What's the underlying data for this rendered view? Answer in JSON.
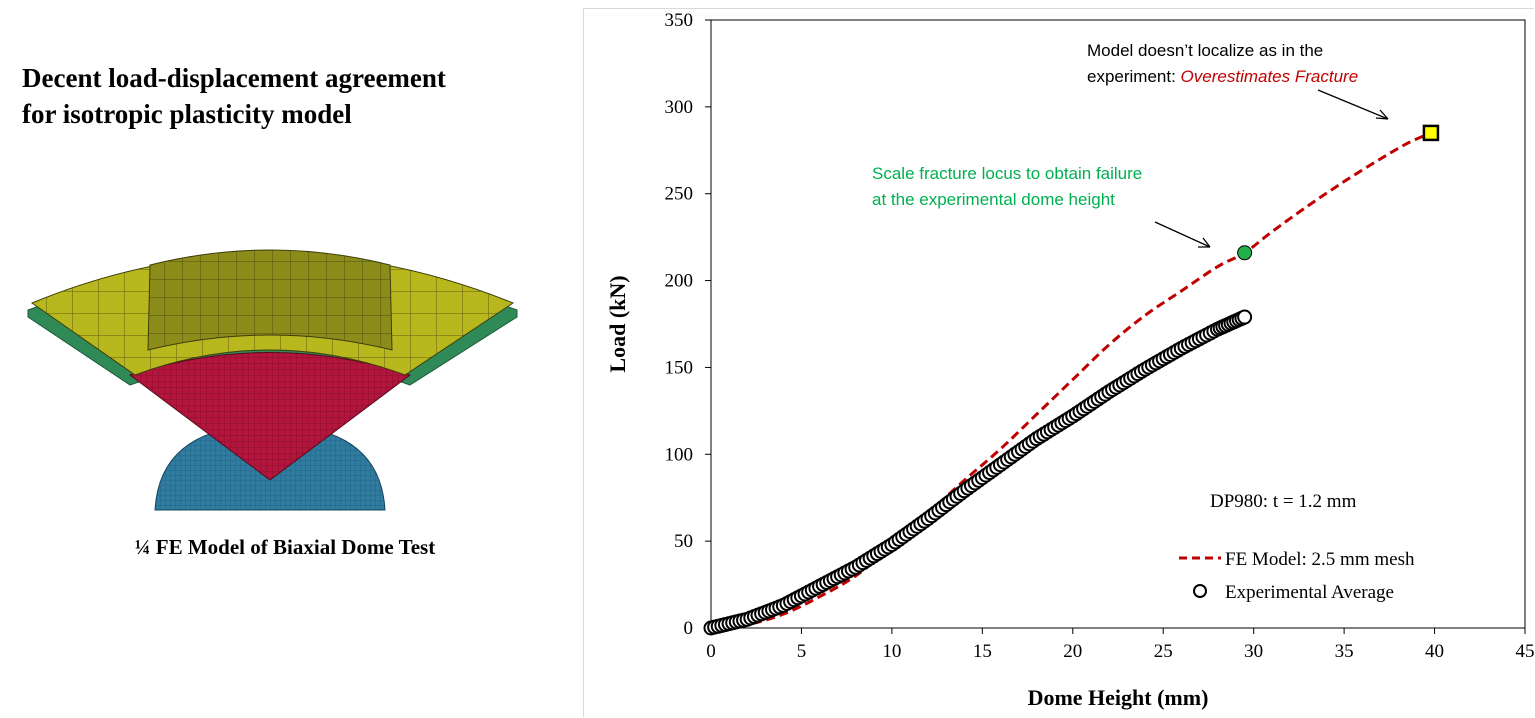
{
  "left_panel": {
    "headline_line1": "Decent load-displacement agreement",
    "headline_line2": "for isotropic plasticity model",
    "figure_caption": "¼ FE Model of Biaxial Dome Test"
  },
  "chart_data": {
    "type": "line",
    "xlabel": "Dome Height (mm)",
    "ylabel": "Load (kN)",
    "xlim": [
      0,
      45
    ],
    "ylim": [
      0,
      350
    ],
    "x_ticks": [
      0,
      5,
      10,
      15,
      20,
      25,
      30,
      35,
      40,
      45
    ],
    "y_ticks": [
      0,
      50,
      100,
      150,
      200,
      250,
      300,
      350
    ],
    "grid": false,
    "legend_position": "bottom-right",
    "series": [
      {
        "name": "FE Model: 2.5 mm mesh",
        "style": "dashed-line",
        "color": "#c00000",
        "x": [
          0,
          2,
          4,
          6,
          8,
          10,
          12,
          14,
          16,
          18,
          20,
          22,
          24,
          26,
          28,
          29.5,
          31,
          33,
          35,
          37,
          38.5,
          39.8
        ],
        "y": [
          0,
          2,
          8,
          18,
          30,
          47,
          66,
          85,
          103,
          123,
          143,
          163,
          180,
          194,
          208,
          216,
          228,
          243,
          257,
          270,
          279,
          285
        ]
      },
      {
        "name": "Experimental Average",
        "style": "open-circle-markers",
        "color": "#000000",
        "x": [
          0,
          2,
          4,
          6,
          8,
          10,
          12,
          14,
          16,
          18,
          20,
          22,
          24,
          26,
          28,
          29.5
        ],
        "y": [
          0,
          5,
          13,
          24,
          35,
          48,
          63,
          79,
          94,
          109,
          122,
          136,
          149,
          161,
          172,
          179
        ]
      }
    ],
    "markers": [
      {
        "name": "green-fracture-point",
        "x": 29.5,
        "y": 216,
        "color": "#22b04b"
      },
      {
        "name": "yellow-fracture-point",
        "x": 39.8,
        "y": 285,
        "color": "#ffff00"
      }
    ],
    "annotations": {
      "localize_line1": "Model doesn’t localize as in the",
      "localize_line2_prefix": "experiment: ",
      "localize_line2_emph": "Overestimates Fracture",
      "scale_line1": "Scale fracture locus to obtain failure",
      "scale_line2": "at the experimental dome height",
      "material": "DP980: t = 1.2 mm"
    },
    "colors": {
      "annotation_green": "#00b050",
      "annotation_red": "#c00000",
      "fe_line": "#c00000"
    }
  }
}
